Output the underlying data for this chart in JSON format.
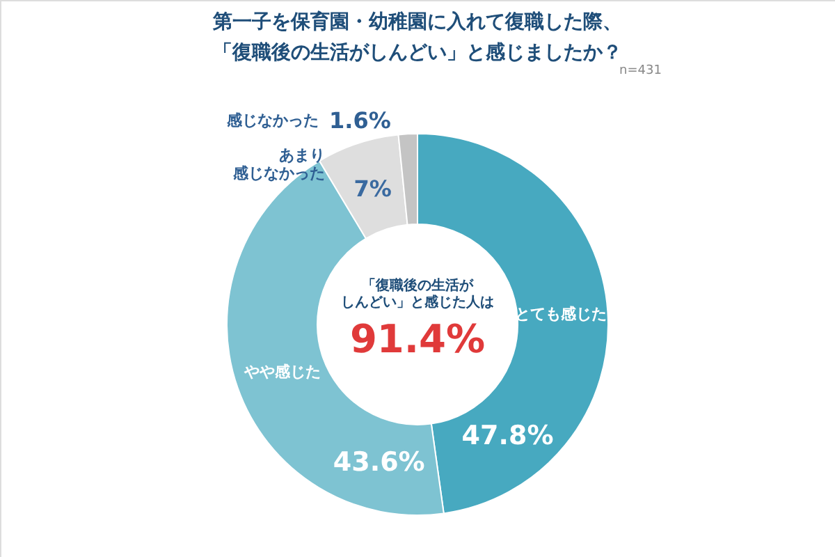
{
  "chart_data": {
    "type": "donut",
    "title": "第一子を保育園・幼稚園に入れて復職した際、「復職後の生活がしんどい」と感じましたか？",
    "categories": [
      "とても感じた",
      "やや感じた",
      "あまり感じなかった",
      "感じなかった"
    ],
    "values": [
      47.8,
      43.6,
      7,
      1.6
    ],
    "value_labels": [
      "47.8%",
      "43.6%",
      "7%",
      "1.6%"
    ],
    "colors": [
      "#47a9c0",
      "#7ec3d2",
      "#dedede",
      "#c4c4c4"
    ],
    "annotations": [
      "「復職後の生活がしんどい」と感じた人は",
      "91.4%",
      "n=431"
    ]
  }
}
